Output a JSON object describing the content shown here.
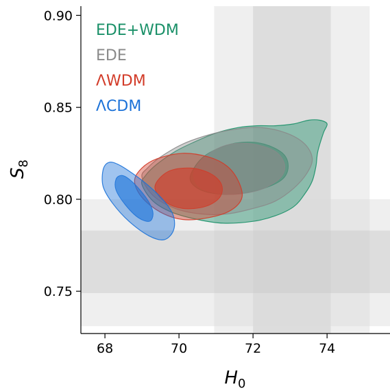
{
  "chart_data": {
    "type": "contour",
    "xlabel_main": "H",
    "xlabel_sub": "0",
    "ylabel_main": "S",
    "ylabel_sub": "8",
    "xlim": [
      67.35,
      75.7
    ],
    "ylim": [
      0.727,
      0.905
    ],
    "x_ticks": [
      68,
      70,
      72,
      74
    ],
    "x_tick_labels": [
      "68",
      "70",
      "72",
      "74"
    ],
    "y_ticks": [
      0.75,
      0.8,
      0.85,
      0.9
    ],
    "y_tick_labels": [
      "0.75",
      "0.80",
      "0.85",
      "0.90"
    ],
    "grid": false,
    "legend_position": "top-left",
    "bands": [
      {
        "axis": "x",
        "from": 70.95,
        "to": 75.15,
        "color": "#dcdcdc",
        "opacity": 0.45
      },
      {
        "axis": "x",
        "from": 72.0,
        "to": 74.1,
        "color": "#c8c8c8",
        "opacity": 0.45
      },
      {
        "axis": "y",
        "from": 0.731,
        "to": 0.8,
        "color": "#dcdcdc",
        "opacity": 0.45
      },
      {
        "axis": "y",
        "from": 0.749,
        "to": 0.783,
        "color": "#c8c8c8",
        "opacity": 0.45
      }
    ],
    "series": [
      {
        "name": "EDE+WDM",
        "color": "#1a9068",
        "outer": [
          [
            69.0,
            0.808
          ],
          [
            69.3,
            0.799
          ],
          [
            69.8,
            0.793
          ],
          [
            70.5,
            0.789
          ],
          [
            71.2,
            0.787
          ],
          [
            72.0,
            0.788
          ],
          [
            72.6,
            0.791
          ],
          [
            73.1,
            0.796
          ],
          [
            73.4,
            0.803
          ],
          [
            73.6,
            0.81
          ],
          [
            73.7,
            0.818
          ],
          [
            73.75,
            0.826
          ],
          [
            73.9,
            0.836
          ],
          [
            74.0,
            0.841
          ],
          [
            73.8,
            0.843
          ],
          [
            73.5,
            0.843
          ],
          [
            73.1,
            0.841
          ],
          [
            72.6,
            0.84
          ],
          [
            72.1,
            0.84
          ],
          [
            71.6,
            0.839
          ],
          [
            71.0,
            0.836
          ],
          [
            70.4,
            0.831
          ],
          [
            69.9,
            0.826
          ],
          [
            69.4,
            0.819
          ],
          [
            69.1,
            0.813
          ]
        ],
        "inner": [
          [
            70.3,
            0.812
          ],
          [
            70.5,
            0.806
          ],
          [
            71.0,
            0.803
          ],
          [
            71.6,
            0.803
          ],
          [
            72.3,
            0.806
          ],
          [
            72.8,
            0.811
          ],
          [
            72.95,
            0.818
          ],
          [
            72.8,
            0.825
          ],
          [
            72.3,
            0.83
          ],
          [
            71.7,
            0.831
          ],
          [
            71.1,
            0.828
          ],
          [
            70.6,
            0.822
          ]
        ]
      },
      {
        "name": "EDE",
        "color": "#8a8a8a",
        "outer": [
          [
            69.0,
            0.812
          ],
          [
            69.3,
            0.802
          ],
          [
            69.9,
            0.795
          ],
          [
            70.6,
            0.792
          ],
          [
            71.3,
            0.792
          ],
          [
            72.0,
            0.795
          ],
          [
            72.6,
            0.799
          ],
          [
            73.1,
            0.806
          ],
          [
            73.45,
            0.814
          ],
          [
            73.6,
            0.822
          ],
          [
            73.4,
            0.83
          ],
          [
            72.9,
            0.836
          ],
          [
            72.2,
            0.839
          ],
          [
            71.5,
            0.838
          ],
          [
            70.8,
            0.835
          ],
          [
            70.1,
            0.83
          ],
          [
            69.5,
            0.823
          ],
          [
            69.15,
            0.817
          ]
        ],
        "inner": [
          [
            70.4,
            0.812
          ],
          [
            70.6,
            0.806
          ],
          [
            71.1,
            0.803
          ],
          [
            71.7,
            0.803
          ],
          [
            72.3,
            0.806
          ],
          [
            72.75,
            0.812
          ],
          [
            72.85,
            0.819
          ],
          [
            72.6,
            0.826
          ],
          [
            72.0,
            0.83
          ],
          [
            71.4,
            0.83
          ],
          [
            70.9,
            0.826
          ],
          [
            70.5,
            0.819
          ]
        ]
      },
      {
        "name": "ΛWDM",
        "color": "#d23b28",
        "outer": [
          [
            68.8,
            0.81
          ],
          [
            69.0,
            0.801
          ],
          [
            69.5,
            0.793
          ],
          [
            70.1,
            0.789
          ],
          [
            70.8,
            0.79
          ],
          [
            71.4,
            0.794
          ],
          [
            71.7,
            0.801
          ],
          [
            71.6,
            0.81
          ],
          [
            71.3,
            0.818
          ],
          [
            70.8,
            0.823
          ],
          [
            70.1,
            0.825
          ],
          [
            69.4,
            0.822
          ],
          [
            69.0,
            0.817
          ]
        ],
        "inner": [
          [
            69.35,
            0.807
          ],
          [
            69.6,
            0.799
          ],
          [
            70.1,
            0.795
          ],
          [
            70.7,
            0.796
          ],
          [
            71.1,
            0.801
          ],
          [
            71.15,
            0.808
          ],
          [
            70.85,
            0.814
          ],
          [
            70.3,
            0.817
          ],
          [
            69.7,
            0.815
          ]
        ]
      },
      {
        "name": "ΛCDM",
        "color": "#1c72d8",
        "outer": [
          [
            67.95,
            0.816
          ],
          [
            67.95,
            0.807
          ],
          [
            68.2,
            0.798
          ],
          [
            68.65,
            0.788
          ],
          [
            69.2,
            0.78
          ],
          [
            69.6,
            0.778
          ],
          [
            69.85,
            0.783
          ],
          [
            69.85,
            0.791
          ],
          [
            69.6,
            0.799
          ],
          [
            69.2,
            0.807
          ],
          [
            68.75,
            0.814
          ],
          [
            68.35,
            0.819
          ],
          [
            68.1,
            0.82
          ]
        ],
        "inner": [
          [
            68.3,
            0.811
          ],
          [
            68.3,
            0.805
          ],
          [
            68.55,
            0.797
          ],
          [
            68.9,
            0.79
          ],
          [
            69.2,
            0.788
          ],
          [
            69.3,
            0.792
          ],
          [
            69.2,
            0.798
          ],
          [
            68.95,
            0.805
          ],
          [
            68.65,
            0.811
          ],
          [
            68.45,
            0.813
          ]
        ]
      }
    ]
  }
}
